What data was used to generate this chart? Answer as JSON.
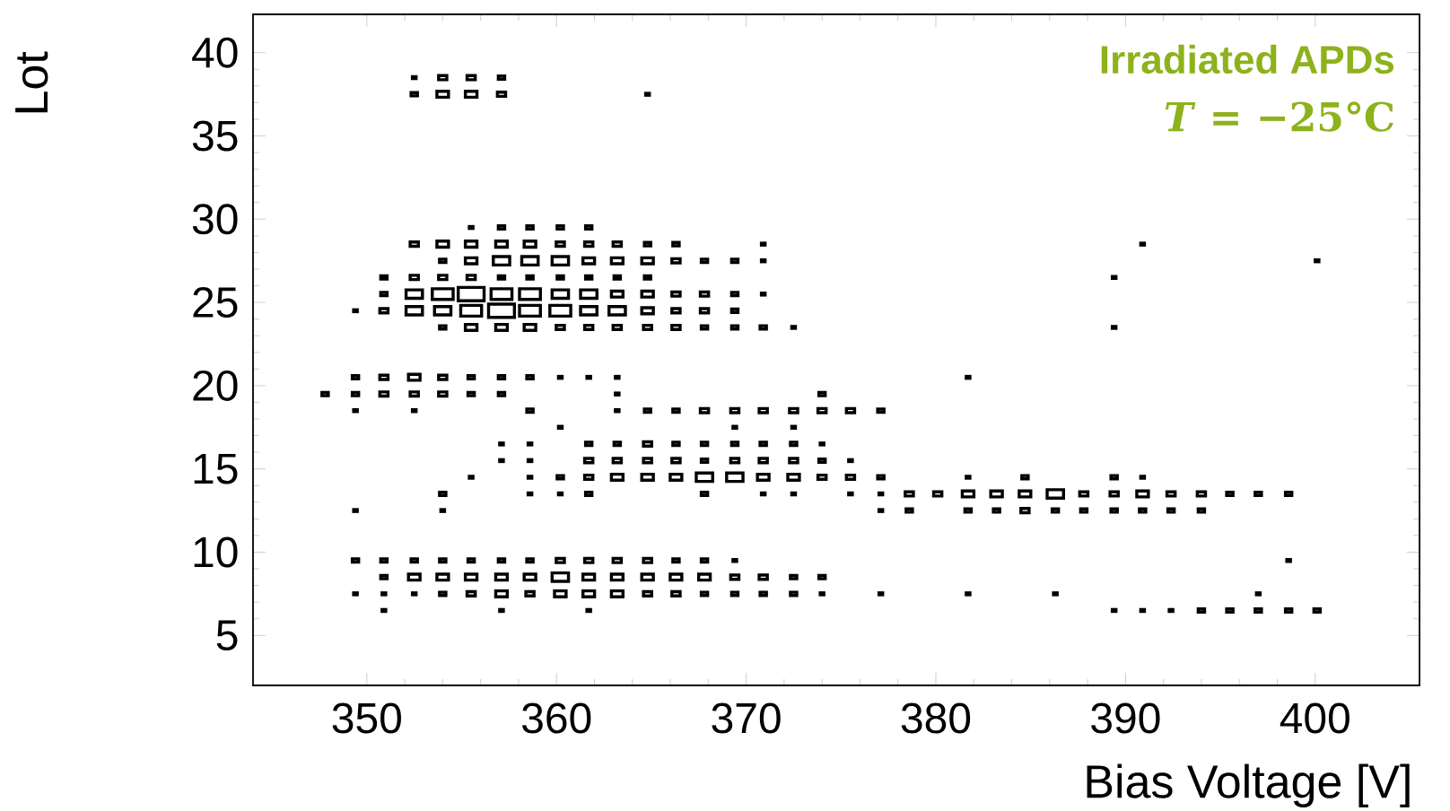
{
  "chart_data": {
    "type": "bubble",
    "xlabel": "Bias Voltage [V]",
    "ylabel": "Lot",
    "annotations": [
      "**Irradiated APDs**",
      "*T* = −25°C"
    ],
    "xlim": [
      344,
      405.5
    ],
    "xticks": [
      350,
      360,
      370,
      380,
      390,
      400
    ],
    "ylim": [
      2,
      42.3
    ],
    "yticks": [
      5,
      10,
      15,
      20,
      25,
      30,
      35,
      40
    ],
    "marker": "square",
    "series": [
      {
        "color": "#000000",
        "x": [
          352.5,
          354.0,
          355.5,
          357.1
        ],
        "values": [
          38.5,
          38.5,
          38.5,
          38.5
        ],
        "sizes": [
          0.02,
          0.1,
          0.1,
          0.06
        ]
      },
      {
        "color": "#000000",
        "x": [
          352.5,
          354.0,
          355.5,
          357.1,
          364.8
        ],
        "values": [
          37.5,
          37.5,
          37.5,
          37.5,
          37.5
        ],
        "sizes": [
          0.06,
          0.2,
          0.2,
          0.1,
          0.02
        ]
      },
      {
        "color": "#000000",
        "x": [
          355.5,
          357.1,
          358.6,
          360.2,
          361.7
        ],
        "values": [
          29.5,
          29.5,
          29.5,
          29.5,
          29.5
        ],
        "sizes": [
          0.02,
          0.06,
          0.06,
          0.06,
          0.06
        ]
      },
      {
        "color": "#000000",
        "x": [
          352.5,
          354.0,
          355.5,
          357.1,
          358.6,
          360.2,
          361.7,
          363.2,
          364.8,
          366.3,
          370.9,
          390.9
        ],
        "values": [
          28.5,
          28.5,
          28.5,
          28.5,
          28.5,
          28.5,
          28.5,
          28.5,
          28.5,
          28.5,
          28.5,
          28.5
        ],
        "sizes": [
          0.1,
          0.2,
          0.2,
          0.2,
          0.2,
          0.1,
          0.1,
          0.1,
          0.06,
          0.06,
          0.02,
          0.02
        ]
      },
      {
        "color": "#000000",
        "x": [
          354.0,
          355.5,
          357.1,
          358.6,
          360.2,
          361.7,
          363.2,
          364.8,
          366.3,
          367.8,
          369.4,
          370.9,
          400.1
        ],
        "values": [
          27.5,
          27.5,
          27.5,
          27.5,
          27.5,
          27.5,
          27.5,
          27.5,
          27.5,
          27.5,
          27.5,
          27.5,
          27.5
        ],
        "sizes": [
          0.06,
          0.2,
          0.4,
          0.4,
          0.4,
          0.2,
          0.2,
          0.2,
          0.1,
          0.06,
          0.06,
          0.02,
          0.02
        ]
      },
      {
        "color": "#000000",
        "x": [
          350.9,
          352.5,
          354.0,
          355.5,
          357.1,
          358.6,
          360.2,
          361.7,
          363.2,
          364.8,
          389.4
        ],
        "values": [
          26.5,
          26.5,
          26.5,
          26.5,
          26.5,
          26.5,
          26.5,
          26.5,
          26.5,
          26.5,
          26.5
        ],
        "sizes": [
          0.06,
          0.1,
          0.1,
          0.1,
          0.06,
          0.06,
          0.06,
          0.06,
          0.06,
          0.06,
          0.02
        ]
      },
      {
        "color": "#000000",
        "x": [
          350.9,
          352.5,
          354.0,
          355.5,
          357.1,
          358.6,
          360.2,
          361.7,
          363.2,
          364.8,
          366.3,
          367.8,
          369.4,
          370.9
        ],
        "values": [
          25.5,
          25.5,
          25.5,
          25.5,
          25.5,
          25.5,
          25.5,
          25.5,
          25.5,
          25.5,
          25.5,
          25.5,
          25.5,
          25.5
        ],
        "sizes": [
          0.06,
          0.4,
          0.65,
          1,
          0.65,
          0.65,
          0.4,
          0.4,
          0.2,
          0.2,
          0.1,
          0.1,
          0.06,
          0.02
        ]
      },
      {
        "color": "#000000",
        "x": [
          349.4,
          350.9,
          352.5,
          354.0,
          355.5,
          357.1,
          358.6,
          360.2,
          361.7,
          363.2,
          364.8,
          366.3,
          367.8,
          369.4
        ],
        "values": [
          24.5,
          24.5,
          24.5,
          24.5,
          24.5,
          24.5,
          24.5,
          24.5,
          24.5,
          24.5,
          24.5,
          24.5,
          24.5,
          24.5
        ],
        "sizes": [
          0.02,
          0.1,
          0.4,
          0.4,
          0.65,
          1,
          0.65,
          0.65,
          0.4,
          0.4,
          0.2,
          0.1,
          0.1,
          0.06
        ]
      },
      {
        "color": "#000000",
        "x": [
          354.0,
          355.5,
          357.1,
          358.6,
          360.2,
          361.7,
          363.2,
          364.8,
          366.3,
          367.8,
          369.4,
          370.9,
          372.5,
          389.4
        ],
        "values": [
          23.5,
          23.5,
          23.5,
          23.5,
          23.5,
          23.5,
          23.5,
          23.5,
          23.5,
          23.5,
          23.5,
          23.5,
          23.5,
          23.5
        ],
        "sizes": [
          0.06,
          0.2,
          0.2,
          0.2,
          0.1,
          0.1,
          0.1,
          0.1,
          0.1,
          0.06,
          0.06,
          0.06,
          0.02,
          0.02
        ]
      },
      {
        "color": "#000000",
        "x": [
          349.4,
          350.9,
          352.5,
          354.0,
          355.5,
          357.1,
          358.6,
          360.2,
          361.7,
          363.2,
          381.7
        ],
        "values": [
          20.5,
          20.5,
          20.5,
          20.5,
          20.5,
          20.5,
          20.5,
          20.5,
          20.5,
          20.5,
          20.5
        ],
        "sizes": [
          0.06,
          0.1,
          0.2,
          0.1,
          0.06,
          0.06,
          0.06,
          0.02,
          0.02,
          0.02,
          0.02
        ]
      },
      {
        "color": "#000000",
        "x": [
          347.8,
          349.4,
          350.9,
          352.5,
          354.0,
          355.5,
          357.1,
          363.2,
          374.0
        ],
        "values": [
          19.5,
          19.5,
          19.5,
          19.5,
          19.5,
          19.5,
          19.5,
          19.5,
          19.5
        ],
        "sizes": [
          0.06,
          0.06,
          0.1,
          0.1,
          0.1,
          0.06,
          0.06,
          0.02,
          0.06
        ]
      },
      {
        "color": "#000000",
        "x": [
          349.4,
          352.5,
          358.6,
          363.2,
          364.8,
          366.3,
          367.8,
          369.4,
          370.9,
          372.5,
          374.0,
          375.5,
          377.1
        ],
        "values": [
          18.5,
          18.5,
          18.5,
          18.5,
          18.5,
          18.5,
          18.5,
          18.5,
          18.5,
          18.5,
          18.5,
          18.5,
          18.5
        ],
        "sizes": [
          0.02,
          0.02,
          0.06,
          0.02,
          0.06,
          0.06,
          0.1,
          0.1,
          0.1,
          0.1,
          0.1,
          0.1,
          0.06
        ]
      },
      {
        "color": "#000000",
        "x": [
          360.2,
          369.4,
          372.5
        ],
        "values": [
          17.5,
          17.5,
          17.5
        ],
        "sizes": [
          0.02,
          0.02,
          0.02
        ]
      },
      {
        "color": "#000000",
        "x": [
          357.1,
          358.6,
          361.7,
          363.2,
          364.8,
          366.3,
          367.8,
          369.4,
          370.9,
          372.5,
          374.0
        ],
        "values": [
          16.5,
          16.5,
          16.5,
          16.5,
          16.5,
          16.5,
          16.5,
          16.5,
          16.5,
          16.5,
          16.5
        ],
        "sizes": [
          0.02,
          0.02,
          0.06,
          0.06,
          0.1,
          0.06,
          0.06,
          0.06,
          0.06,
          0.06,
          0.02
        ]
      },
      {
        "color": "#000000",
        "x": [
          357.1,
          358.6,
          361.7,
          363.2,
          364.8,
          366.3,
          367.8,
          369.4,
          370.9,
          372.5,
          374.0,
          375.5
        ],
        "values": [
          15.5,
          15.5,
          15.5,
          15.5,
          15.5,
          15.5,
          15.5,
          15.5,
          15.5,
          15.5,
          15.5,
          15.5
        ],
        "sizes": [
          0.02,
          0.02,
          0.1,
          0.1,
          0.1,
          0.1,
          0.06,
          0.1,
          0.1,
          0.1,
          0.06,
          0.02
        ]
      },
      {
        "color": "#000000",
        "x": [
          355.5,
          358.6,
          360.2,
          361.7,
          363.2,
          364.8,
          366.3,
          367.8,
          369.4,
          370.9,
          372.5,
          374.0,
          375.5,
          377.1,
          381.7,
          384.7,
          389.4,
          390.9
        ],
        "values": [
          14.5,
          14.5,
          14.5,
          14.5,
          14.5,
          14.5,
          14.5,
          14.5,
          14.5,
          14.5,
          14.5,
          14.5,
          14.5,
          14.5,
          14.5,
          14.5,
          14.5,
          14.5
        ],
        "sizes": [
          0.02,
          0.02,
          0.06,
          0.1,
          0.2,
          0.2,
          0.2,
          0.4,
          0.4,
          0.2,
          0.2,
          0.1,
          0.1,
          0.06,
          0.02,
          0.06,
          0.06,
          0.02
        ]
      },
      {
        "color": "#000000",
        "x": [
          354.0,
          358.6,
          360.2,
          361.7,
          367.8,
          370.9,
          372.5,
          375.5,
          377.1,
          378.6,
          380.1,
          381.7,
          383.2,
          384.7,
          386.3,
          387.8,
          389.4,
          390.9,
          392.4,
          394.0,
          395.5,
          397.0,
          398.6
        ],
        "values": [
          13.5,
          13.5,
          13.5,
          13.5,
          13.5,
          13.5,
          13.5,
          13.5,
          13.5,
          13.5,
          13.5,
          13.5,
          13.5,
          13.5,
          13.5,
          13.5,
          13.5,
          13.5,
          13.5,
          13.5,
          13.5,
          13.5,
          13.5
        ],
        "sizes": [
          0.06,
          0.02,
          0.02,
          0.06,
          0.06,
          0.02,
          0.02,
          0.02,
          0.02,
          0.1,
          0.1,
          0.2,
          0.2,
          0.2,
          0.4,
          0.1,
          0.1,
          0.2,
          0.1,
          0.1,
          0.06,
          0.06,
          0.06
        ]
      },
      {
        "color": "#000000",
        "x": [
          349.4,
          354.0,
          377.1,
          378.6,
          381.7,
          383.2,
          384.7,
          386.3,
          387.8,
          389.4,
          390.9,
          392.4,
          394.0
        ],
        "values": [
          12.5,
          12.5,
          12.5,
          12.5,
          12.5,
          12.5,
          12.5,
          12.5,
          12.5,
          12.5,
          12.5,
          12.5,
          12.5
        ],
        "sizes": [
          0.02,
          0.02,
          0.02,
          0.06,
          0.06,
          0.06,
          0.1,
          0.06,
          0.06,
          0.06,
          0.06,
          0.06,
          0.06
        ]
      },
      {
        "color": "#000000",
        "x": [
          349.4,
          350.9,
          352.5,
          354.0,
          355.5,
          357.1,
          358.6,
          360.2,
          361.7,
          363.2,
          364.8,
          366.3,
          367.8,
          369.4,
          398.6
        ],
        "values": [
          9.5,
          9.5,
          9.5,
          9.5,
          9.5,
          9.5,
          9.5,
          9.5,
          9.5,
          9.5,
          9.5,
          9.5,
          9.5,
          9.5,
          9.5
        ],
        "sizes": [
          0.06,
          0.06,
          0.06,
          0.06,
          0.06,
          0.06,
          0.06,
          0.1,
          0.1,
          0.1,
          0.1,
          0.06,
          0.06,
          0.02,
          0.02
        ]
      },
      {
        "color": "#000000",
        "x": [
          350.9,
          352.5,
          354.0,
          355.5,
          357.1,
          358.6,
          360.2,
          361.7,
          363.2,
          364.8,
          366.3,
          367.8,
          369.4,
          370.9,
          372.5,
          374.0
        ],
        "values": [
          8.5,
          8.5,
          8.5,
          8.5,
          8.5,
          8.5,
          8.5,
          8.5,
          8.5,
          8.5,
          8.5,
          8.5,
          8.5,
          8.5,
          8.5,
          8.5
        ],
        "sizes": [
          0.06,
          0.2,
          0.2,
          0.2,
          0.2,
          0.2,
          0.4,
          0.2,
          0.2,
          0.2,
          0.2,
          0.2,
          0.1,
          0.1,
          0.06,
          0.06
        ]
      },
      {
        "color": "#000000",
        "x": [
          349.4,
          350.9,
          352.5,
          354.0,
          355.5,
          357.1,
          358.6,
          360.2,
          361.7,
          363.2,
          364.8,
          366.3,
          367.8,
          369.4,
          370.9,
          372.5,
          374.0,
          377.1,
          381.7,
          386.3,
          397.0
        ],
        "values": [
          7.5,
          7.5,
          7.5,
          7.5,
          7.5,
          7.5,
          7.5,
          7.5,
          7.5,
          7.5,
          7.5,
          7.5,
          7.5,
          7.5,
          7.5,
          7.5,
          7.5,
          7.5,
          7.5,
          7.5,
          7.5
        ],
        "sizes": [
          0.02,
          0.02,
          0.02,
          0.06,
          0.1,
          0.2,
          0.1,
          0.2,
          0.2,
          0.2,
          0.1,
          0.1,
          0.06,
          0.06,
          0.06,
          0.06,
          0.02,
          0.02,
          0.02,
          0.02,
          0.02
        ]
      },
      {
        "color": "#000000",
        "x": [
          350.9,
          357.1,
          361.7,
          389.4,
          390.9,
          392.4,
          394.0,
          395.5,
          397.0,
          398.6,
          400.1
        ],
        "values": [
          6.5,
          6.5,
          6.5,
          6.5,
          6.5,
          6.5,
          6.5,
          6.5,
          6.5,
          6.5,
          6.5
        ],
        "sizes": [
          0.02,
          0.02,
          0.02,
          0.02,
          0.02,
          0.02,
          0.06,
          0.06,
          0.06,
          0.06,
          0.06
        ]
      }
    ]
  }
}
